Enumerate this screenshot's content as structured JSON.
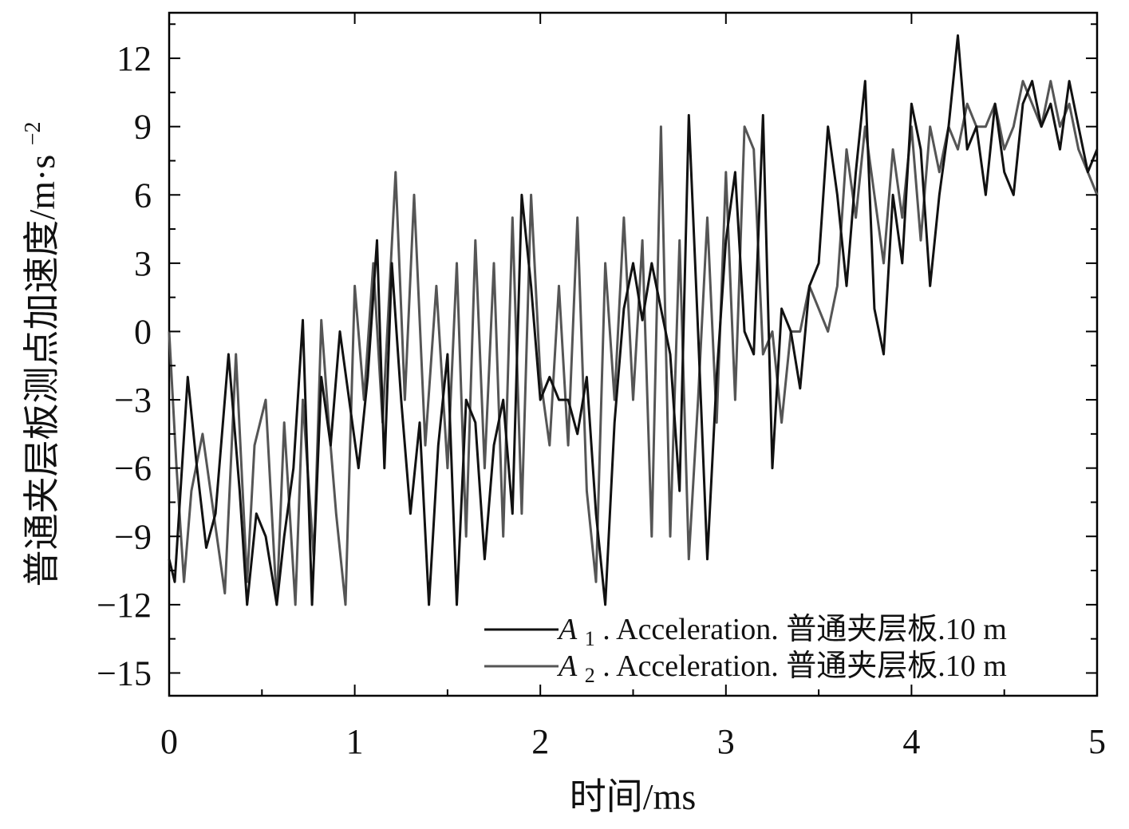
{
  "chart_data": {
    "type": "line",
    "xlabel": "时间/ms",
    "ylabel_main": "普通夹层板测点加速度/m·s",
    "ylabel_exp": "−2",
    "xlim": [
      0,
      5
    ],
    "ylim": [
      -16,
      14
    ],
    "xticks": [
      0,
      1,
      2,
      3,
      4,
      5
    ],
    "xtick_labels": [
      "0",
      "1",
      "2",
      "3",
      "4",
      "5"
    ],
    "yticks": [
      -15,
      -12,
      -9,
      -6,
      -3,
      0,
      3,
      6,
      9,
      12
    ],
    "ytick_labels": [
      "−15",
      "−12",
      "−9",
      "−6",
      "−3",
      "0",
      "3",
      "6",
      "9",
      "12"
    ],
    "grid": false,
    "legend_position": "bottom-right",
    "legend": [
      {
        "symbol": "A",
        "sub": "1",
        "text": ". Acceleration. 普通夹层板.10 m",
        "color": "#111111"
      },
      {
        "symbol": "A",
        "sub": "2",
        "text": ". Acceleration. 普通夹层板.10 m",
        "color": "#555555"
      }
    ],
    "series": [
      {
        "color": "#111111",
        "x": [
          0,
          0.03,
          0.1,
          0.15,
          0.2,
          0.25,
          0.32,
          0.38,
          0.42,
          0.47,
          0.52,
          0.58,
          0.62,
          0.67,
          0.72,
          0.77,
          0.82,
          0.87,
          0.92,
          0.97,
          1.02,
          1.07,
          1.12,
          1.16,
          1.2,
          1.25,
          1.3,
          1.35,
          1.4,
          1.45,
          1.5,
          1.55,
          1.6,
          1.65,
          1.7,
          1.75,
          1.8,
          1.85,
          1.9,
          1.95,
          2.0,
          2.05,
          2.1,
          2.15,
          2.2,
          2.25,
          2.3,
          2.35,
          2.4,
          2.45,
          2.5,
          2.55,
          2.6,
          2.65,
          2.7,
          2.75,
          2.8,
          2.85,
          2.9,
          2.95,
          3.0,
          3.05,
          3.1,
          3.15,
          3.2,
          3.25,
          3.3,
          3.35,
          3.4,
          3.45,
          3.5,
          3.55,
          3.6,
          3.65,
          3.7,
          3.75,
          3.8,
          3.85,
          3.9,
          3.95,
          4.0,
          4.05,
          4.1,
          4.15,
          4.2,
          4.25,
          4.3,
          4.35,
          4.4,
          4.45,
          4.5,
          4.55,
          4.6,
          4.65,
          4.7,
          4.75,
          4.8,
          4.85,
          4.9,
          4.95,
          5.0
        ],
        "y": [
          -10,
          -11,
          -2,
          -6,
          -9.5,
          -8,
          -1,
          -7,
          -12,
          -8,
          -9,
          -12,
          -9,
          -6,
          0.5,
          -12,
          -2,
          -5,
          0,
          -3,
          -6,
          -2,
          4,
          -6,
          3,
          -3,
          -8,
          -4,
          -12,
          -5,
          -1,
          -12,
          -3,
          -4,
          -10,
          -5,
          -3,
          -8,
          6,
          2,
          -3,
          -2,
          -3,
          -3,
          -4.5,
          -2,
          -8,
          -12,
          -4,
          1,
          3,
          0.5,
          3,
          1,
          -1,
          -7,
          9.5,
          0,
          -10,
          -2,
          4,
          7,
          0,
          -1,
          9.5,
          -6,
          1,
          0,
          -2.5,
          2,
          3,
          9,
          6,
          2,
          7,
          11,
          1,
          -1,
          6,
          3,
          10,
          8,
          2,
          6,
          9,
          13,
          8,
          9,
          6,
          10,
          7,
          6,
          10,
          11,
          9,
          10,
          8,
          11,
          9,
          7,
          8
        ]
      },
      {
        "color": "#555555",
        "x": [
          0,
          0.04,
          0.08,
          0.12,
          0.18,
          0.24,
          0.3,
          0.36,
          0.42,
          0.46,
          0.52,
          0.58,
          0.62,
          0.68,
          0.72,
          0.78,
          0.82,
          0.86,
          0.9,
          0.95,
          1.0,
          1.05,
          1.1,
          1.15,
          1.22,
          1.27,
          1.32,
          1.38,
          1.44,
          1.5,
          1.55,
          1.6,
          1.65,
          1.7,
          1.75,
          1.8,
          1.85,
          1.9,
          1.95,
          2.0,
          2.05,
          2.1,
          2.15,
          2.2,
          2.25,
          2.3,
          2.35,
          2.4,
          2.45,
          2.5,
          2.55,
          2.6,
          2.65,
          2.7,
          2.75,
          2.8,
          2.85,
          2.9,
          2.95,
          3.0,
          3.05,
          3.1,
          3.15,
          3.2,
          3.25,
          3.3,
          3.35,
          3.4,
          3.45,
          3.5,
          3.55,
          3.6,
          3.65,
          3.7,
          3.75,
          3.8,
          3.85,
          3.9,
          3.95,
          4.0,
          4.05,
          4.1,
          4.15,
          4.2,
          4.25,
          4.3,
          4.35,
          4.4,
          4.45,
          4.5,
          4.55,
          4.6,
          4.65,
          4.7,
          4.75,
          4.8,
          4.85,
          4.9,
          4.95,
          5.0
        ],
        "y": [
          0,
          -6,
          -11,
          -7,
          -4.5,
          -8,
          -11.5,
          -1,
          -11,
          -5,
          -3,
          -12,
          -4,
          -12,
          -3,
          -10,
          0.5,
          -4,
          -8,
          -12,
          2,
          -3,
          3,
          -4,
          7,
          -3,
          6,
          -5,
          2,
          -6,
          3,
          -9,
          4,
          -6,
          3,
          -9,
          5,
          -8,
          6,
          -2,
          -5,
          2,
          -5,
          5,
          -7,
          -11,
          3,
          -3,
          5,
          -3,
          4,
          -9,
          9,
          -9,
          4,
          -10,
          -3,
          5,
          -4,
          7,
          -3,
          9,
          8,
          -1,
          0,
          -4,
          0,
          0,
          2,
          1,
          0,
          2,
          8,
          5,
          9,
          6,
          3,
          8,
          5,
          9,
          4,
          9,
          7,
          9,
          8,
          10,
          9,
          9,
          10,
          8,
          9,
          11,
          10,
          9,
          11,
          9,
          10,
          8,
          7,
          6
        ]
      }
    ]
  }
}
